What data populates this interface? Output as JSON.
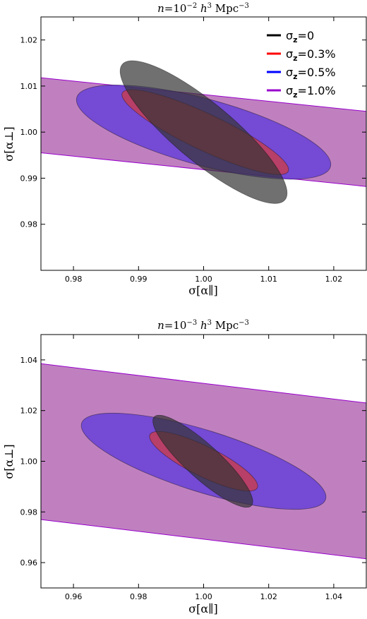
{
  "chart_data": [
    {
      "type": "ellipse-contours",
      "title": "n=10^{-2} h^3 Mpc^{-3}",
      "title_parts": {
        "pre": "n",
        "eq": "=10",
        "exp1": "−2",
        "h": " h",
        "exp2": "3",
        "unit": " Mpc",
        "exp3": "−3"
      },
      "xlabel": "σ[α∥]",
      "ylabel": "σ[α⊥]",
      "xlim": [
        0.975,
        1.025
      ],
      "ylim": [
        0.97,
        1.025
      ],
      "xticks": [
        "0.98",
        "0.99",
        "1.00",
        "1.01",
        "1.02"
      ],
      "xtick_values": [
        0.98,
        0.99,
        1.0,
        1.01,
        1.02
      ],
      "yticks": [
        "0.98",
        "0.99",
        "1.00",
        "1.01",
        "1.02"
      ],
      "ytick_values": [
        0.98,
        0.99,
        1.0,
        1.01,
        1.02
      ],
      "legend": {
        "position": "top-right"
      },
      "series": [
        {
          "name": "σz=0",
          "label_sym": "σ",
          "label_sub": "z",
          "label_val": "=0",
          "color": "#000000",
          "fill": "#333333",
          "opacity": 0.7,
          "ellipse": {
            "cx": 1.0,
            "cy": 1.0,
            "tips": [
              [
                0.9875,
                1.0147
              ],
              [
                1.0125,
                0.9853
              ]
            ],
            "width": 0.0045
          }
        },
        {
          "name": "σz=0.3%",
          "label_sym": "σ",
          "label_sub": "z",
          "label_val": "=0.3%",
          "color": "#ff0000",
          "fill": "#d33a3a",
          "opacity": 0.7,
          "ellipse": {
            "cx": 1.0,
            "cy": 1.0,
            "tips": [
              [
                0.9875,
                1.0085
              ],
              [
                1.013,
                0.9915
              ]
            ],
            "width": 0.0028
          }
        },
        {
          "name": "σz=0.5%",
          "label_sym": "σ",
          "label_sub": "z",
          "label_val": "=0.5%",
          "color": "#0000ff",
          "fill": "#5533dd",
          "opacity": 0.7,
          "ellipse": {
            "cx": 1.0,
            "cy": 1.0,
            "tips": [
              [
                0.9805,
                1.0075
              ],
              [
                1.0195,
                0.9925
              ]
            ],
            "width": 0.0051
          }
        },
        {
          "name": "σz=1.0%",
          "label_sym": "σ",
          "label_sub": "z",
          "label_val": "=1.0%",
          "color": "#9900cc",
          "fill": "#a54aa5",
          "opacity": 0.7,
          "band": {
            "x": [
              0.975,
              1.025
            ],
            "upper": [
              1.0118,
              1.0045
            ],
            "lower": [
              0.9955,
              0.9882
            ]
          }
        }
      ]
    },
    {
      "type": "ellipse-contours",
      "title": "n=10^{-3} h^3 Mpc^{-3}",
      "title_parts": {
        "pre": "n",
        "eq": "=10",
        "exp1": "−3",
        "h": " h",
        "exp2": "3",
        "unit": " Mpc",
        "exp3": "−3"
      },
      "xlabel": "σ[α∥]",
      "ylabel": "σ[α⊥]",
      "xlim": [
        0.95,
        1.05
      ],
      "ylim": [
        0.95,
        1.05
      ],
      "xticks": [
        "0.96",
        "0.98",
        "1.00",
        "1.02",
        "1.04"
      ],
      "xtick_values": [
        0.96,
        0.98,
        1.0,
        1.02,
        1.04
      ],
      "yticks": [
        "0.96",
        "0.98",
        "1.00",
        "1.02",
        "1.04"
      ],
      "ytick_values": [
        0.96,
        0.98,
        1.0,
        1.02,
        1.04
      ],
      "series": [
        {
          "name": "σz=0",
          "color": "#000000",
          "fill": "#333333",
          "opacity": 0.7,
          "ellipse": {
            "cx": 1.0,
            "cy": 1.0,
            "tips": [
              [
                0.9848,
                1.0175
              ],
              [
                1.0147,
                0.9825
              ]
            ],
            "width": 0.0052
          }
        },
        {
          "name": "σz=0.3%",
          "color": "#ff0000",
          "fill": "#d33a3a",
          "opacity": 0.7,
          "ellipse": {
            "cx": 1.0,
            "cy": 1.0,
            "tips": [
              [
                0.9835,
                1.0105
              ],
              [
                1.0165,
                0.9895
              ]
            ],
            "width": 0.0046
          }
        },
        {
          "name": "σz=0.5%",
          "color": "#0000ff",
          "fill": "#5533dd",
          "opacity": 0.7,
          "ellipse": {
            "cx": 1.0,
            "cy": 1.0,
            "tips": [
              [
                0.9625,
                1.015
              ],
              [
                1.0375,
                0.985
              ]
            ],
            "width": 0.0095
          }
        },
        {
          "name": "σz=1.0%",
          "color": "#9900cc",
          "fill": "#a54aa5",
          "opacity": 0.7,
          "band": {
            "x": [
              0.95,
              1.05
            ],
            "upper": [
              1.0385,
              1.023
            ],
            "lower": [
              0.977,
              0.9615
            ]
          }
        }
      ]
    }
  ]
}
